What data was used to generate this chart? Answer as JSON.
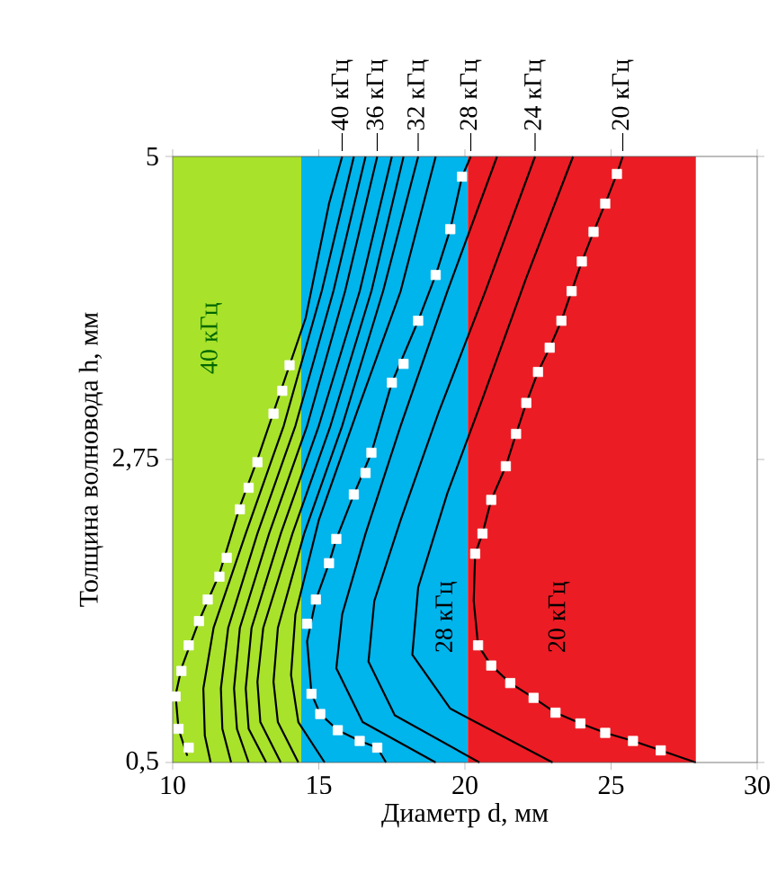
{
  "chart_data": {
    "type": "line",
    "xlabel": "Диаметр d, мм",
    "ylabel": "Толщина волновода h, мм",
    "xlim": [
      10,
      30
    ],
    "ylim": [
      0.5,
      5
    ],
    "xticks": [
      10,
      15,
      20,
      25,
      30
    ],
    "yticks": [
      {
        "value": 0.5,
        "label": "0,5"
      },
      {
        "value": 2.75,
        "label": "2,75"
      },
      5
    ],
    "grid": false,
    "bands": [
      {
        "axis": "x",
        "from": 10,
        "to": 14.4,
        "color": "#a8e22a",
        "label": "40 кГц"
      },
      {
        "axis": "x",
        "from": 14.4,
        "to": 20.1,
        "color": "#00b4ec",
        "label": "28 кГц"
      },
      {
        "axis": "x",
        "from": 20.1,
        "to": 27.9,
        "color": "#ec1c24",
        "label": "20 кГц"
      }
    ],
    "series": [
      {
        "name": "40 кГц",
        "color": "#000000",
        "x": [
          10.5,
          10.2,
          10.1,
          10.3,
          10.9,
          11.6,
          12.3,
          12.9,
          13.45,
          14.0,
          14.55,
          15.35,
          15.8
        ],
        "values": [
          0.55,
          0.75,
          1.0,
          1.2,
          1.55,
          1.9,
          2.4,
          2.75,
          3.1,
          3.45,
          3.8,
          4.65,
          5
        ]
      },
      {
        "color": "#000000",
        "x": [
          11.3,
          11.1,
          11.05,
          11.4,
          12.5,
          13.8,
          15.1,
          16.2
        ],
        "values": [
          0.5,
          0.7,
          1.05,
          1.5,
          2.2,
          3.0,
          4.0,
          5
        ]
      },
      {
        "color": "#000000",
        "x": [
          12.0,
          11.7,
          11.65,
          11.9,
          12.9,
          14.2,
          15.5,
          16.6
        ],
        "values": [
          0.5,
          0.75,
          1.05,
          1.5,
          2.2,
          3.0,
          4.0,
          5
        ]
      },
      {
        "name": "36 кГц",
        "color": "#000000",
        "x": [
          12.6,
          12.2,
          12.1,
          12.3,
          13.3,
          14.6,
          15.9,
          17.0
        ],
        "values": [
          0.5,
          0.75,
          1.05,
          1.5,
          2.2,
          3.0,
          4.0,
          5
        ]
      },
      {
        "color": "#000000",
        "x": [
          13.2,
          12.6,
          12.5,
          12.7,
          13.7,
          15.0,
          16.4,
          17.5
        ],
        "values": [
          0.5,
          0.75,
          1.05,
          1.5,
          2.2,
          3.0,
          4.0,
          5
        ]
      },
      {
        "color": "#000000",
        "x": [
          13.7,
          13.0,
          12.9,
          13.1,
          14.1,
          15.4,
          16.8,
          17.9
        ],
        "values": [
          0.5,
          0.8,
          1.1,
          1.5,
          2.2,
          3.0,
          4.0,
          5
        ]
      },
      {
        "name": "32 кГц",
        "color": "#000000",
        "x": [
          14.3,
          13.6,
          13.45,
          13.6,
          14.5,
          15.8,
          17.2,
          18.4
        ],
        "values": [
          0.5,
          0.8,
          1.1,
          1.5,
          2.2,
          3.0,
          4.0,
          5
        ]
      },
      {
        "color": "#000000",
        "x": [
          15.2,
          14.3,
          14.05,
          14.2,
          15.0,
          16.3,
          17.8,
          19.0
        ],
        "values": [
          0.5,
          0.8,
          1.15,
          1.6,
          2.3,
          3.1,
          4.0,
          5
        ]
      },
      {
        "name": "28 кГц",
        "color": "#000000",
        "x": [
          17.3,
          17.0,
          16.4,
          15.65,
          15.05,
          14.75,
          14.6,
          14.9,
          15.35,
          15.6,
          16.2,
          16.8,
          17.5,
          18.4,
          19.0,
          19.5,
          19.9,
          20.2
        ],
        "values": [
          0.5,
          0.61,
          0.66,
          0.74,
          0.86,
          1.01,
          1.4,
          1.71,
          1.98,
          2.16,
          2.49,
          2.8,
          3.32,
          3.78,
          4.12,
          4.46,
          4.85,
          5
        ]
      },
      {
        "color": "#000000",
        "x": [
          19.0,
          16.5,
          15.6,
          15.8,
          16.6,
          17.8,
          19.4,
          21.1
        ],
        "values": [
          0.5,
          0.8,
          1.2,
          1.6,
          2.2,
          3.0,
          4.0,
          5
        ]
      },
      {
        "name": "24 кГц",
        "color": "#000000",
        "x": [
          20.5,
          17.6,
          16.7,
          16.9,
          17.8,
          19.1,
          20.7,
          22.4
        ],
        "values": [
          0.5,
          0.85,
          1.25,
          1.7,
          2.3,
          3.1,
          4.0,
          5
        ]
      },
      {
        "color": "#000000",
        "x": [
          23.0,
          19.5,
          18.2,
          18.4,
          19.4,
          20.6,
          22.1,
          23.7
        ],
        "values": [
          0.5,
          0.9,
          1.3,
          1.8,
          2.5,
          3.2,
          4.1,
          5
        ]
      },
      {
        "name": "20 кГц",
        "color": "#000000",
        "x": [
          27.9,
          26.7,
          25.75,
          24.8,
          23.95,
          23.1,
          22.35,
          21.55,
          20.9,
          20.45,
          20.3,
          20.35,
          20.6,
          20.9,
          21.4,
          21.75,
          22.1,
          22.5,
          22.9,
          23.3,
          23.65,
          24.0,
          24.4,
          24.8,
          25.2,
          25.4
        ],
        "values": [
          0.5,
          0.59,
          0.66,
          0.72,
          0.79,
          0.87,
          0.98,
          1.09,
          1.22,
          1.37,
          1.7,
          2.05,
          2.2,
          2.45,
          2.7,
          2.94,
          3.17,
          3.4,
          3.58,
          3.78,
          4.0,
          4.22,
          4.44,
          4.65,
          4.87,
          5
        ]
      },
      {
        "type": "scatter",
        "color": "#ffffff",
        "marker": "square",
        "x": [
          10.55,
          10.2,
          10.1,
          10.3,
          10.55,
          10.9,
          11.2,
          11.6,
          11.85,
          12.3,
          12.6,
          12.9,
          13.45,
          13.75,
          14.0
        ],
        "values": [
          0.61,
          0.75,
          0.99,
          1.18,
          1.37,
          1.55,
          1.71,
          1.88,
          2.02,
          2.38,
          2.54,
          2.73,
          3.09,
          3.26,
          3.45
        ]
      },
      {
        "type": "scatter",
        "color": "#ffffff",
        "marker": "square",
        "x": [
          17.0,
          16.4,
          15.65,
          15.05,
          14.75,
          14.6,
          14.9,
          15.35,
          15.6,
          16.2,
          16.6,
          16.8,
          17.5,
          17.9,
          18.4,
          19.0,
          19.5,
          19.9
        ],
        "values": [
          0.61,
          0.66,
          0.74,
          0.86,
          1.01,
          1.53,
          1.71,
          1.98,
          2.16,
          2.49,
          2.65,
          2.8,
          3.32,
          3.46,
          3.78,
          4.12,
          4.46,
          4.85
        ]
      },
      {
        "type": "scatter",
        "color": "#ffffff",
        "marker": "square",
        "x": [
          26.7,
          25.75,
          24.8,
          23.95,
          23.1,
          22.35,
          21.55,
          20.9,
          20.45,
          20.35,
          20.6,
          20.9,
          21.4,
          21.75,
          22.1,
          22.5,
          22.9,
          23.3,
          23.65,
          24.0,
          24.4,
          24.8,
          25.2
        ],
        "values": [
          0.59,
          0.66,
          0.72,
          0.79,
          0.87,
          0.98,
          1.09,
          1.22,
          1.37,
          2.05,
          2.2,
          2.45,
          2.7,
          2.94,
          3.17,
          3.4,
          3.58,
          3.78,
          4.0,
          4.22,
          4.44,
          4.65,
          4.87
        ]
      }
    ]
  }
}
